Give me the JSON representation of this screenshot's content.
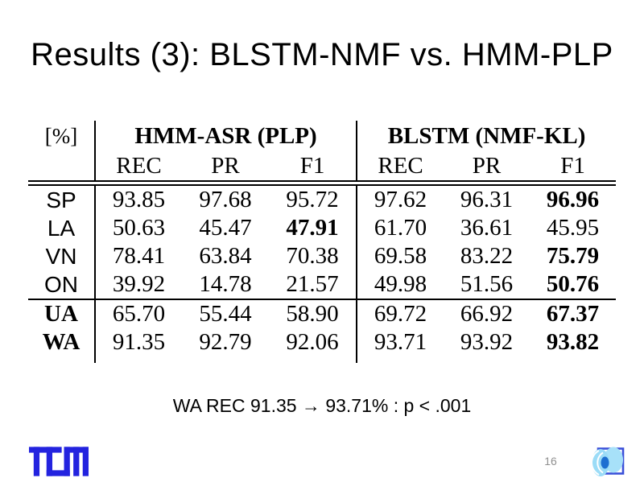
{
  "slide": {
    "title": "Results (3): BLSTM-NMF vs. HMM-PLP",
    "note": "WA REC 91.35 → 93.71% : p < .001",
    "page_number": "16"
  },
  "colors": {
    "tum_blue": "#2323DF",
    "institute_border_blue": "#3A50D9",
    "institute_light_blue_fan": "#9BDCF7",
    "institute_light_blue_blob": "#A7E1F9",
    "institute_mid_blue": "#1D6FD1",
    "page_number_gray": "#909090",
    "text_black": "#000000"
  },
  "table": {
    "unit_header": "[%]",
    "groups": [
      {
        "label": "HMM-ASR (PLP)",
        "columns": [
          "REC",
          "PR",
          "F1"
        ]
      },
      {
        "label": "BLSTM (NMF-KL)",
        "columns": [
          "REC",
          "PR",
          "F1"
        ]
      }
    ],
    "rows": [
      {
        "label": "SP",
        "label_bold": false,
        "rule_above": false,
        "values": [
          "93.85",
          "97.68",
          "95.72",
          "97.62",
          "96.31",
          "96.96"
        ],
        "bold": [
          false,
          false,
          false,
          false,
          false,
          true
        ]
      },
      {
        "label": "LA",
        "label_bold": false,
        "rule_above": false,
        "values": [
          "50.63",
          "45.47",
          "47.91",
          "61.70",
          "36.61",
          "45.95"
        ],
        "bold": [
          false,
          false,
          true,
          false,
          false,
          false
        ]
      },
      {
        "label": "VN",
        "label_bold": false,
        "rule_above": false,
        "values": [
          "78.41",
          "63.84",
          "70.38",
          "69.58",
          "83.22",
          "75.79"
        ],
        "bold": [
          false,
          false,
          false,
          false,
          false,
          true
        ]
      },
      {
        "label": "ON",
        "label_bold": false,
        "rule_above": false,
        "values": [
          "39.92",
          "14.78",
          "21.57",
          "49.98",
          "51.56",
          "50.76"
        ],
        "bold": [
          false,
          false,
          false,
          false,
          false,
          true
        ]
      },
      {
        "label": "UA",
        "label_bold": true,
        "rule_above": true,
        "values": [
          "65.70",
          "55.44",
          "58.90",
          "69.72",
          "66.92",
          "67.37"
        ],
        "bold": [
          false,
          false,
          false,
          false,
          false,
          true
        ]
      },
      {
        "label": "WA",
        "label_bold": true,
        "rule_above": false,
        "values": [
          "91.35",
          "92.79",
          "92.06",
          "93.71",
          "93.92",
          "93.82"
        ],
        "bold": [
          false,
          false,
          false,
          false,
          false,
          true
        ]
      }
    ]
  }
}
